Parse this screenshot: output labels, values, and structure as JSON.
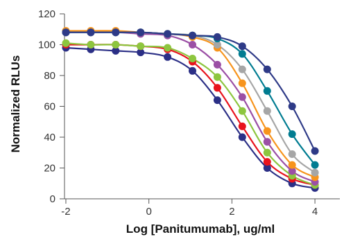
{
  "chart_data": {
    "type": "line",
    "title": "",
    "xlabel": "Log [Panitumumab], ug/ml",
    "ylabel": "Normalized RLUs",
    "xlim": [
      -2.2,
      4.6
    ],
    "ylim": [
      0,
      120
    ],
    "xticks": [
      -2,
      0,
      2,
      4
    ],
    "yticks": [
      0,
      20,
      40,
      60,
      80,
      100,
      120
    ],
    "xtick_labels": [
      "-2",
      "0",
      "2",
      "4"
    ],
    "ytick_labels": [
      "0",
      "20",
      "40",
      "60",
      "80",
      "100",
      "120"
    ],
    "grid": false,
    "legend": "none",
    "x": [
      -2,
      -1.4,
      -0.8,
      -0.2,
      0.45,
      1.05,
      1.65,
      2.25,
      2.85,
      3.45,
      4.0
    ],
    "series": [
      {
        "color": "#2b2f86",
        "values": [
          98,
          97,
          96,
          95,
          92,
          83,
          64,
          40,
          20,
          10,
          7
        ]
      },
      {
        "color": "#e8131d",
        "values": [
          100,
          100,
          100,
          99,
          97,
          89,
          72,
          47,
          24,
          13,
          9
        ]
      },
      {
        "color": "#8dc63f",
        "values": [
          101,
          100,
          100,
          99,
          98,
          91,
          79,
          57,
          30,
          15,
          9
        ]
      },
      {
        "color": "#9b4fa5",
        "values": [
          108,
          108,
          108,
          107,
          106,
          100,
          87,
          66,
          37,
          18,
          11
        ]
      },
      {
        "color": "#f7941d",
        "values": [
          109,
          109,
          109,
          108,
          107,
          105,
          98,
          75,
          44,
          22,
          14
        ]
      },
      {
        "color": "#a6a6a6",
        "values": [
          108,
          108,
          108,
          108,
          107,
          106,
          100,
          84,
          57,
          29,
          17
        ]
      },
      {
        "color": "#007c91",
        "values": [
          108,
          108,
          108,
          108,
          107,
          106,
          104,
          94,
          70,
          42,
          22
        ]
      },
      {
        "color": "#2e3a87",
        "values": [
          108,
          108,
          108,
          108,
          107,
          106,
          105,
          99,
          84,
          60,
          31
        ]
      }
    ]
  }
}
